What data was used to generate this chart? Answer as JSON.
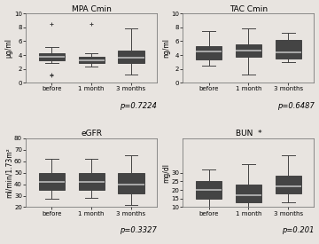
{
  "panels": [
    {
      "title": "MPA Cmin",
      "ylabel": "μg/ml",
      "pvalue": "p=0.7224",
      "ylim": [
        0,
        10
      ],
      "yticks": [
        0,
        2,
        4,
        6,
        8,
        10
      ],
      "boxes": [
        {
          "med": 3.8,
          "q1": 3.3,
          "q3": 4.3,
          "whislo": 2.8,
          "whishi": 5.2,
          "fliers": [
            1.0,
            1.2,
            8.5
          ]
        },
        {
          "med": 3.3,
          "q1": 2.9,
          "q3": 3.8,
          "whislo": 2.4,
          "whishi": 4.3,
          "fliers": [
            8.5
          ]
        },
        {
          "med": 3.6,
          "q1": 2.8,
          "q3": 4.6,
          "whislo": 1.2,
          "whishi": 7.8,
          "fliers": []
        }
      ]
    },
    {
      "title": "TAC Cmin",
      "ylabel": "ng/ml",
      "pvalue": "p=0.6487",
      "ylim": [
        0,
        10
      ],
      "yticks": [
        0,
        2,
        4,
        6,
        8,
        10
      ],
      "boxes": [
        {
          "med": 4.5,
          "q1": 3.4,
          "q3": 5.3,
          "whislo": 2.5,
          "whishi": 7.5,
          "fliers": []
        },
        {
          "med": 4.6,
          "q1": 3.7,
          "q3": 5.5,
          "whislo": 1.2,
          "whishi": 7.8,
          "fliers": []
        },
        {
          "med": 4.4,
          "q1": 3.5,
          "q3": 6.2,
          "whislo": 3.0,
          "whishi": 7.2,
          "fliers": []
        }
      ]
    },
    {
      "title": "eGFR",
      "ylabel": "ml/min/1.73m²",
      "pvalue": "p=0.3327",
      "ylim": [
        20,
        80
      ],
      "yticks": [
        20,
        30,
        40,
        50,
        60,
        70,
        80
      ],
      "boxes": [
        {
          "med": 42,
          "q1": 35,
          "q3": 50,
          "whislo": 27,
          "whishi": 62,
          "fliers": []
        },
        {
          "med": 42,
          "q1": 35,
          "q3": 50,
          "whislo": 28,
          "whishi": 62,
          "fliers": []
        },
        {
          "med": 40,
          "q1": 32,
          "q3": 50,
          "whislo": 22,
          "whishi": 65,
          "fliers": []
        }
      ]
    },
    {
      "title": "BUN  *",
      "ylabel": "mg/dl",
      "pvalue": "p=0.201",
      "ylim": [
        10,
        50
      ],
      "yticks": [
        10,
        15,
        20,
        25,
        30
      ],
      "boxes": [
        {
          "med": 20,
          "q1": 15,
          "q3": 25,
          "whislo": 10,
          "whishi": 32,
          "fliers": []
        },
        {
          "med": 17,
          "q1": 13,
          "q3": 23,
          "whislo": 10,
          "whishi": 35,
          "fliers": []
        },
        {
          "med": 22,
          "q1": 18,
          "q3": 28,
          "whislo": 13,
          "whishi": 40,
          "fliers": []
        }
      ]
    }
  ],
  "xlabels": [
    "before",
    "1 month",
    "3 months"
  ],
  "box_color": "#111111",
  "median_color": "#bbbbbb",
  "whisker_color": "#444444",
  "flier_color": "#444444",
  "bg_color": "#e8e4e0",
  "title_fontsize": 6.5,
  "label_fontsize": 5.5,
  "tick_fontsize": 5,
  "pval_fontsize": 6
}
